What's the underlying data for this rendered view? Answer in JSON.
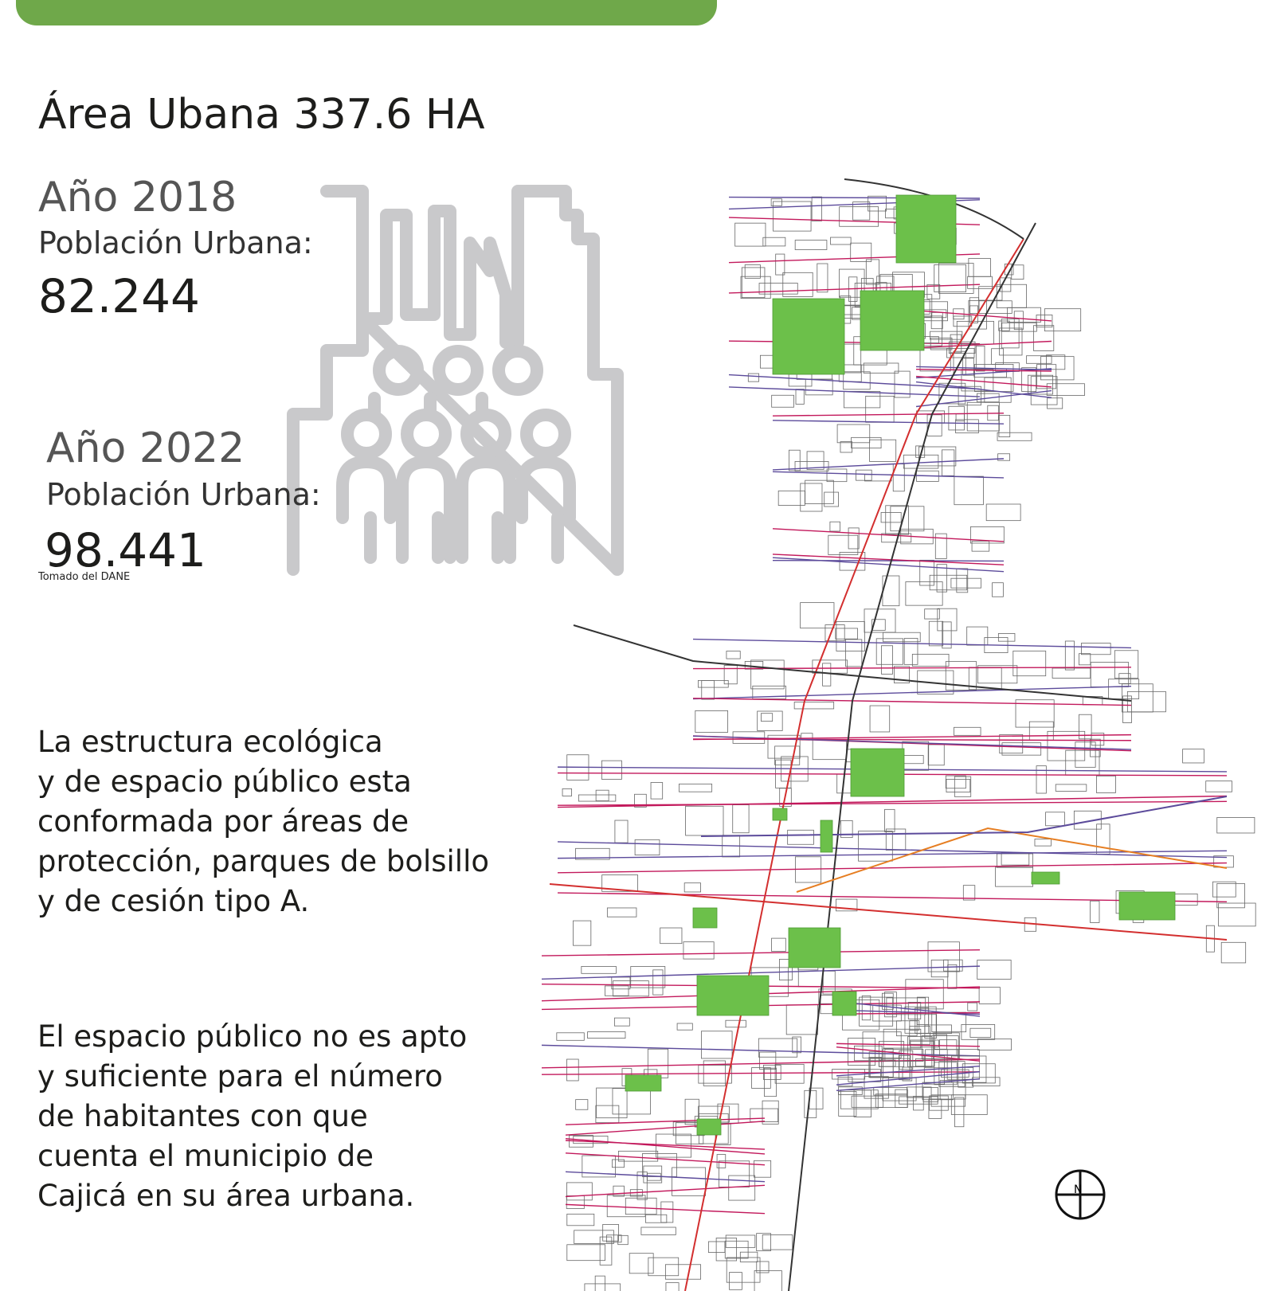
{
  "header": {
    "title": "Área Ubana 337.6 HA"
  },
  "stats": [
    {
      "year": "Año 2018",
      "label": "Población Urbana:",
      "value": "82.244"
    },
    {
      "year": "Año 2022",
      "label": "Población Urbana:",
      "value": "98.441"
    }
  ],
  "source": "Tomado del DANE",
  "paragraphs": [
    [
      "La estructura ecológica",
      "y de espacio público esta",
      "conformada por áreas de",
      "protección, parques de bolsillo",
      "y de cesión tipo A."
    ],
    [
      "El espacio público no es apto",
      "y suficiente para el número",
      "de habitantes con que",
      "cuenta el municipio de",
      "Cajicá en su área urbana."
    ]
  ],
  "compass": "N"
}
